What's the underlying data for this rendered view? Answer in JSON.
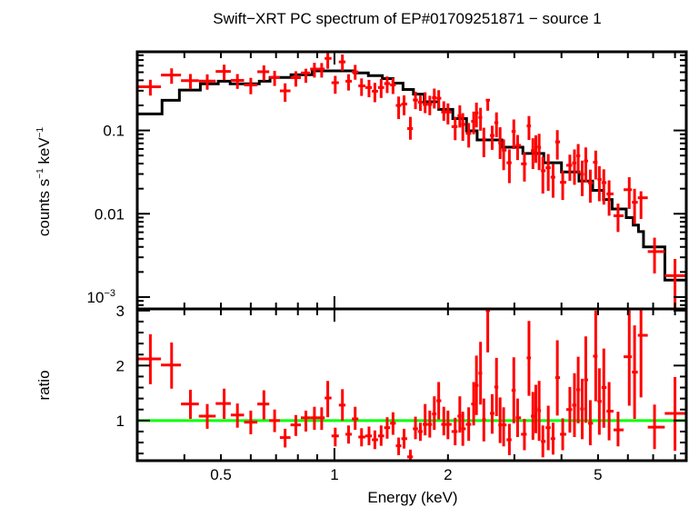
{
  "colors": {
    "data": "#ff0000",
    "model": "#000000",
    "unity_line": "#00ff00",
    "frame": "#000000"
  },
  "chart_data": [
    {
      "type": "scatter",
      "panel": "spectrum",
      "title": "Swift−XRT PC spectrum of EP#01709251871 − source 1",
      "ylabel_main": "counts s",
      "ylabel_sup1": "−1",
      "ylabel_mid": " keV",
      "ylabel_sup2": "−1",
      "xscale": "log",
      "yscale": "log",
      "xlim": [
        0.3,
        8.57
      ],
      "ylim": [
        0.00072,
        0.88
      ],
      "yticks": [
        {
          "value": 0.1,
          "label": "0.1"
        },
        {
          "value": 0.01,
          "label": "0.01"
        },
        {
          "value": 0.001,
          "label": "10",
          "sup": "−3"
        }
      ],
      "model_steps": [
        [
          0.3,
          0.349,
          0.158
        ],
        [
          0.349,
          0.388,
          0.23
        ],
        [
          0.388,
          0.441,
          0.305
        ],
        [
          0.441,
          0.492,
          0.363
        ],
        [
          0.492,
          0.529,
          0.39
        ],
        [
          0.529,
          0.632,
          0.363
        ],
        [
          0.632,
          0.675,
          0.39
        ],
        [
          0.675,
          0.767,
          0.433
        ],
        [
          0.767,
          0.873,
          0.467
        ],
        [
          0.873,
          1.13,
          0.52
        ],
        [
          1.13,
          1.23,
          0.49
        ],
        [
          1.23,
          1.34,
          0.455
        ],
        [
          1.34,
          1.43,
          0.42
        ],
        [
          1.43,
          1.52,
          0.37
        ],
        [
          1.52,
          1.62,
          0.31
        ],
        [
          1.62,
          1.73,
          0.273
        ],
        [
          1.73,
          1.89,
          0.221
        ],
        [
          1.89,
          2.06,
          0.179
        ],
        [
          2.06,
          2.24,
          0.139
        ],
        [
          2.24,
          2.39,
          0.099
        ],
        [
          2.39,
          2.78,
          0.077
        ],
        [
          2.78,
          3.16,
          0.063
        ],
        [
          3.16,
          3.59,
          0.053
        ],
        [
          3.59,
          4.0,
          0.041
        ],
        [
          4.0,
          4.45,
          0.0318
        ],
        [
          4.45,
          4.84,
          0.0247
        ],
        [
          4.84,
          5.17,
          0.0191
        ],
        [
          5.17,
          5.45,
          0.0148
        ],
        [
          5.45,
          5.94,
          0.0114
        ],
        [
          5.94,
          6.2,
          0.009
        ],
        [
          6.2,
          6.4,
          0.0073
        ],
        [
          6.4,
          6.6,
          0.0061
        ],
        [
          6.6,
          7.52,
          0.004
        ],
        [
          7.52,
          8.57,
          0.0016
        ]
      ]
    },
    {
      "type": "scatter",
      "panel": "ratio",
      "xlabel": "Energy (keV)",
      "ylabel": "ratio",
      "xscale": "log",
      "yscale": "linear",
      "xlim": [
        0.3,
        8.57
      ],
      "ylim": [
        0.27,
        3.03
      ],
      "xticks": [
        {
          "value": 0.5,
          "label": "0.5"
        },
        {
          "value": 1,
          "label": "1"
        },
        {
          "value": 2,
          "label": "2"
        },
        {
          "value": 5,
          "label": "5"
        }
      ],
      "yticks": [
        {
          "value": 1,
          "label": "1"
        },
        {
          "value": 2,
          "label": "2"
        },
        {
          "value": 3,
          "label": "3"
        }
      ],
      "reference_line": 1,
      "points_columns": [
        "energy_keV",
        "ratio",
        "ratio_low",
        "ratio_high"
      ],
      "points": [
        [
          0.325,
          2.12,
          1.66,
          2.57
        ],
        [
          0.37,
          2.01,
          1.58,
          2.42
        ],
        [
          0.415,
          1.3,
          1.03,
          1.56
        ],
        [
          0.46,
          1.08,
          0.85,
          1.3
        ],
        [
          0.51,
          1.31,
          1.03,
          1.58
        ],
        [
          0.553,
          1.1,
          0.87,
          1.31
        ],
        [
          0.6,
          0.97,
          0.75,
          1.18
        ],
        [
          0.65,
          1.3,
          1.02,
          1.55
        ],
        [
          0.694,
          1.0,
          0.79,
          1.2
        ],
        [
          0.74,
          0.69,
          0.51,
          0.85
        ],
        [
          0.79,
          0.92,
          0.72,
          1.1
        ],
        [
          0.84,
          1.05,
          0.8,
          1.18
        ],
        [
          0.885,
          1.05,
          0.83,
          1.25
        ],
        [
          0.925,
          1.05,
          0.83,
          1.24
        ],
        [
          0.96,
          1.41,
          1.06,
          1.72
        ],
        [
          1.005,
          0.72,
          0.53,
          0.87
        ],
        [
          1.05,
          1.28,
          1.0,
          1.57
        ],
        [
          1.09,
          0.75,
          0.58,
          0.91
        ],
        [
          1.135,
          1.03,
          0.83,
          1.25
        ],
        [
          1.18,
          0.7,
          0.53,
          0.86
        ],
        [
          1.235,
          0.72,
          0.55,
          0.89
        ],
        [
          1.28,
          0.65,
          0.48,
          0.82
        ],
        [
          1.33,
          0.72,
          0.54,
          0.91
        ],
        [
          1.38,
          0.87,
          0.67,
          1.06
        ],
        [
          1.43,
          0.95,
          0.74,
          1.15
        ],
        [
          1.48,
          0.54,
          0.37,
          0.69
        ],
        [
          1.53,
          0.67,
          0.49,
          0.85
        ],
        [
          1.59,
          0.34,
          0.25,
          0.47
        ],
        [
          1.64,
          0.85,
          0.66,
          1.07
        ],
        [
          1.69,
          0.8,
          0.63,
          0.96
        ],
        [
          1.74,
          0.93,
          0.73,
          1.3
        ],
        [
          1.79,
          0.93,
          0.69,
          1.18
        ],
        [
          1.84,
          1.12,
          0.83,
          1.44
        ],
        [
          1.89,
          1.36,
          1.02,
          1.7
        ],
        [
          1.95,
          0.93,
          0.73,
          1.25
        ],
        [
          2.0,
          0.93,
          0.66,
          1.18
        ],
        [
          2.09,
          0.8,
          0.55,
          1.05
        ],
        [
          2.15,
          1.08,
          0.78,
          1.44
        ],
        [
          2.19,
          0.85,
          0.54,
          1.16
        ],
        [
          2.27,
          0.93,
          0.63,
          1.24
        ],
        [
          2.34,
          1.3,
          0.91,
          1.7
        ],
        [
          2.38,
          1.64,
          1.1,
          2.18
        ],
        [
          2.44,
          1.86,
          1.29,
          2.43
        ],
        [
          2.49,
          1.02,
          0.62,
          1.4
        ],
        [
          2.55,
          3.0,
          2.24,
          3.05
        ],
        [
          2.62,
          1.13,
          0.76,
          1.48
        ],
        [
          2.69,
          1.61,
          1.08,
          2.14
        ],
        [
          2.75,
          0.92,
          0.59,
          1.42
        ],
        [
          2.81,
          0.92,
          0.53,
          1.24
        ],
        [
          2.91,
          0.65,
          0.37,
          0.94
        ],
        [
          2.99,
          1.55,
          0.95,
          2.15
        ],
        [
          3.06,
          1.05,
          0.7,
          1.4
        ],
        [
          3.19,
          0.75,
          0.46,
          1.03
        ],
        [
          3.28,
          2.14,
          1.45,
          2.81
        ],
        [
          3.36,
          1.08,
          0.65,
          1.52
        ],
        [
          3.42,
          1.21,
          0.77,
          1.65
        ],
        [
          3.49,
          1.18,
          0.63,
          1.72
        ],
        [
          3.57,
          0.62,
          0.33,
          0.91
        ],
        [
          3.69,
          0.87,
          0.46,
          1.27
        ],
        [
          3.8,
          0.67,
          0.38,
          0.96
        ],
        [
          3.9,
          1.78,
          1.09,
          2.46
        ],
        [
          4.03,
          0.75,
          0.46,
          1.04
        ],
        [
          4.21,
          1.2,
          0.78,
          1.61
        ],
        [
          4.33,
          1.28,
          0.7,
          1.86
        ],
        [
          4.43,
          1.56,
          0.95,
          2.16
        ],
        [
          4.54,
          1.21,
          0.66,
          1.76
        ],
        [
          4.64,
          1.74,
          0.96,
          2.53
        ],
        [
          4.77,
          0.95,
          0.55,
          1.37
        ],
        [
          4.93,
          2.17,
          1.35,
          3.0
        ],
        [
          5.04,
          1.35,
          0.74,
          1.95
        ],
        [
          5.18,
          1.6,
          0.87,
          2.31
        ],
        [
          5.35,
          1.17,
          0.64,
          1.7
        ],
        [
          5.65,
          0.83,
          0.53,
          1.16
        ],
        [
          6.05,
          2.16,
          1.27,
          3.05
        ],
        [
          6.25,
          1.88,
          1.03,
          2.73
        ],
        [
          6.5,
          2.55,
          1.42,
          3.05
        ],
        [
          7.06,
          0.88,
          0.48,
          1.29
        ],
        [
          8.0,
          1.13,
          0.45,
          1.79
        ]
      ]
    }
  ]
}
